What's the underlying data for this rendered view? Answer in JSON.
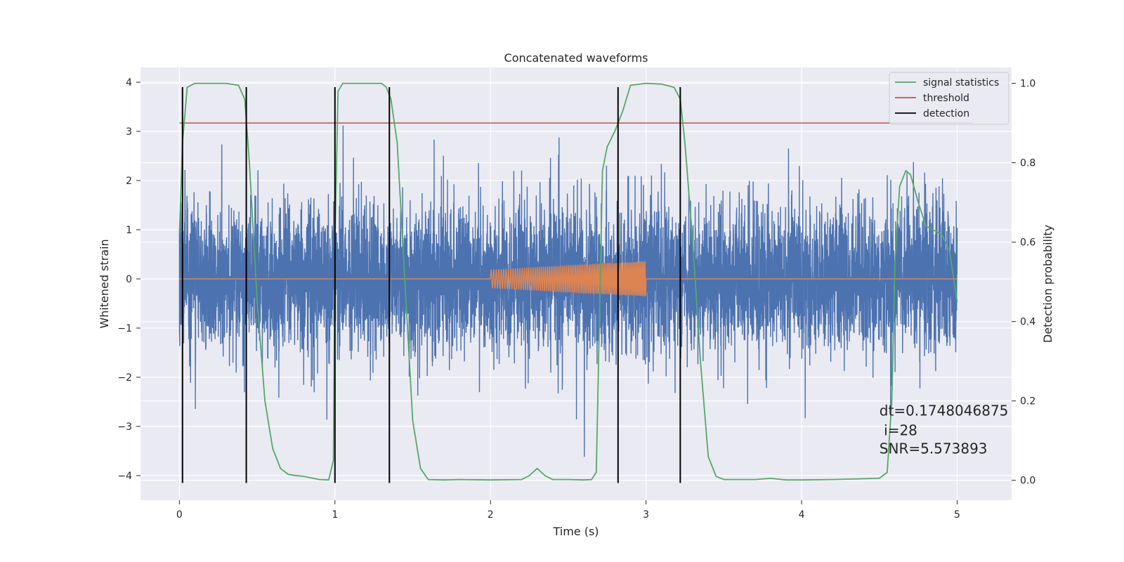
{
  "chart_data": {
    "type": "line",
    "title": "Concatenated waveforms",
    "xlabel": "Time (s)",
    "ylabel_left": "Whitened strain",
    "ylabel_right": "Detection probability",
    "xlim": [
      -0.25,
      5.35
    ],
    "ylim_left": [
      -4.5,
      4.3
    ],
    "ylim_right": [
      -0.05,
      1.04
    ],
    "xticks": [
      0,
      1,
      2,
      3,
      4,
      5
    ],
    "yticks_left": [
      -4,
      -3,
      -2,
      -1,
      0,
      1,
      2,
      3,
      4
    ],
    "yticks_right": [
      0.0,
      0.2,
      0.4,
      0.6,
      0.8,
      1.0
    ],
    "grid": true,
    "legend_position": "top-right",
    "colors": {
      "strain": "#4c72b0",
      "chirp": "#dd8452",
      "signal_statistics": "#55a868",
      "threshold": "#c44e52",
      "detection": "#000000",
      "background": "#eaeaf2"
    },
    "series": [
      {
        "name": "",
        "kind": "whitened-strain-noise",
        "axis": "left",
        "x_range": [
          0,
          5
        ],
        "approx_std": 0.75,
        "approx_range": [
          -4.1,
          3.9
        ]
      },
      {
        "name": "",
        "kind": "injected-chirp",
        "axis": "left",
        "x": [
          0,
          2,
          2,
          3,
          3,
          5
        ],
        "amplitude": [
          0,
          0,
          0.18,
          0.35,
          0,
          0
        ]
      },
      {
        "name": "signal statistics",
        "axis": "right",
        "x": [
          0.0,
          0.02,
          0.05,
          0.1,
          0.2,
          0.3,
          0.38,
          0.42,
          0.45,
          0.5,
          0.55,
          0.6,
          0.65,
          0.7,
          0.75,
          0.8,
          0.9,
          0.96,
          0.99,
          1.0,
          1.02,
          1.05,
          1.1,
          1.2,
          1.3,
          1.33,
          1.36,
          1.4,
          1.45,
          1.5,
          1.55,
          1.6,
          1.7,
          1.8,
          2.0,
          2.2,
          2.25,
          2.3,
          2.35,
          2.4,
          2.5,
          2.6,
          2.65,
          2.68,
          2.7,
          2.72,
          2.75,
          2.8,
          2.85,
          2.9,
          3.0,
          3.1,
          3.18,
          3.22,
          3.25,
          3.3,
          3.35,
          3.4,
          3.45,
          3.5,
          3.7,
          3.8,
          3.9,
          4.0,
          4.2,
          4.5,
          4.55,
          4.58,
          4.6,
          4.63,
          4.67,
          4.7,
          4.75,
          4.8,
          4.85,
          4.9,
          4.95,
          5.0
        ],
        "y": [
          0.62,
          0.85,
          0.99,
          1.0,
          1.0,
          1.0,
          0.995,
          0.96,
          0.8,
          0.45,
          0.2,
          0.08,
          0.03,
          0.015,
          0.012,
          0.01,
          0.002,
          0.001,
          0.05,
          0.6,
          0.98,
          1.0,
          1.0,
          1.0,
          1.0,
          0.99,
          0.96,
          0.85,
          0.5,
          0.15,
          0.03,
          0.002,
          0.001,
          0.002,
          0.001,
          0.002,
          0.012,
          0.03,
          0.012,
          0.002,
          0.002,
          0.001,
          0.002,
          0.02,
          0.4,
          0.78,
          0.84,
          0.88,
          0.93,
          0.995,
          1.0,
          0.998,
          0.99,
          0.96,
          0.85,
          0.6,
          0.3,
          0.06,
          0.01,
          0.002,
          0.002,
          0.005,
          0.001,
          0.001,
          0.002,
          0.005,
          0.02,
          0.2,
          0.55,
          0.74,
          0.78,
          0.77,
          0.7,
          0.64,
          0.63,
          0.62,
          0.58,
          0.45
        ]
      },
      {
        "name": "threshold",
        "axis": "right",
        "x": [
          0,
          5.1
        ],
        "y": [
          0.9,
          0.9
        ]
      }
    ],
    "detections": {
      "name": "detection",
      "x": [
        0.02,
        0.43,
        1.0,
        1.35,
        2.82,
        3.22
      ],
      "y_range_left": [
        -4.15,
        3.9
      ]
    },
    "annotation": {
      "line1": "dt=0.1748046875",
      "line2": " i=28",
      "line3": "SNR=5.573893",
      "x": 4.5,
      "y_right": 0.075
    }
  }
}
